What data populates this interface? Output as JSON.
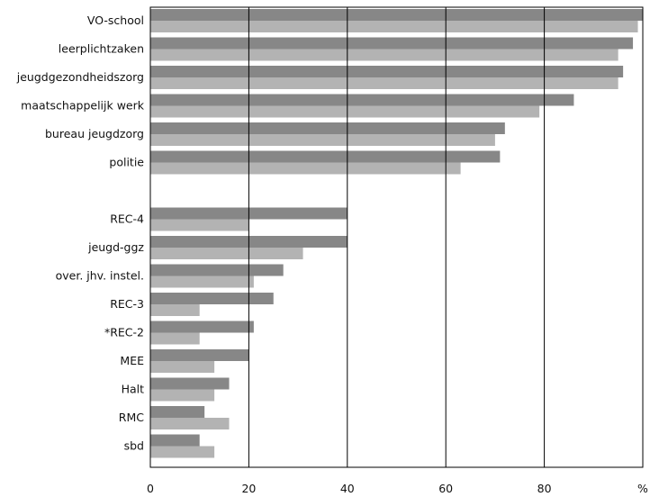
{
  "chart_data": {
    "type": "bar",
    "orientation": "horizontal",
    "x_unit_label": "%",
    "xlim": [
      0,
      100
    ],
    "x_ticks": [
      0,
      20,
      40,
      60,
      80
    ],
    "grid": "vertical lines at 20, 40, 60, 80",
    "legend": "none",
    "categories": [
      "VO-school",
      "leerplichtzaken",
      "jeugdgezondheidszorg",
      "maatschappelijk werk",
      "bureau jeugdzorg",
      "politie",
      "",
      "REC-4",
      "jeugd-ggz",
      "over. jhv. instel.",
      "REC-3",
      "*REC-2",
      "MEE",
      "Halt",
      "RMC",
      "sbd"
    ],
    "series": [
      {
        "color": "#878787",
        "values": [
          100,
          98,
          96,
          86,
          72,
          71,
          null,
          40,
          40,
          27,
          25,
          21,
          20,
          16,
          11,
          10
        ]
      },
      {
        "color": "#b3b3b3",
        "values": [
          99,
          95,
          95,
          79,
          70,
          63,
          null,
          20,
          31,
          21,
          10,
          10,
          13,
          13,
          16,
          13
        ]
      }
    ]
  }
}
